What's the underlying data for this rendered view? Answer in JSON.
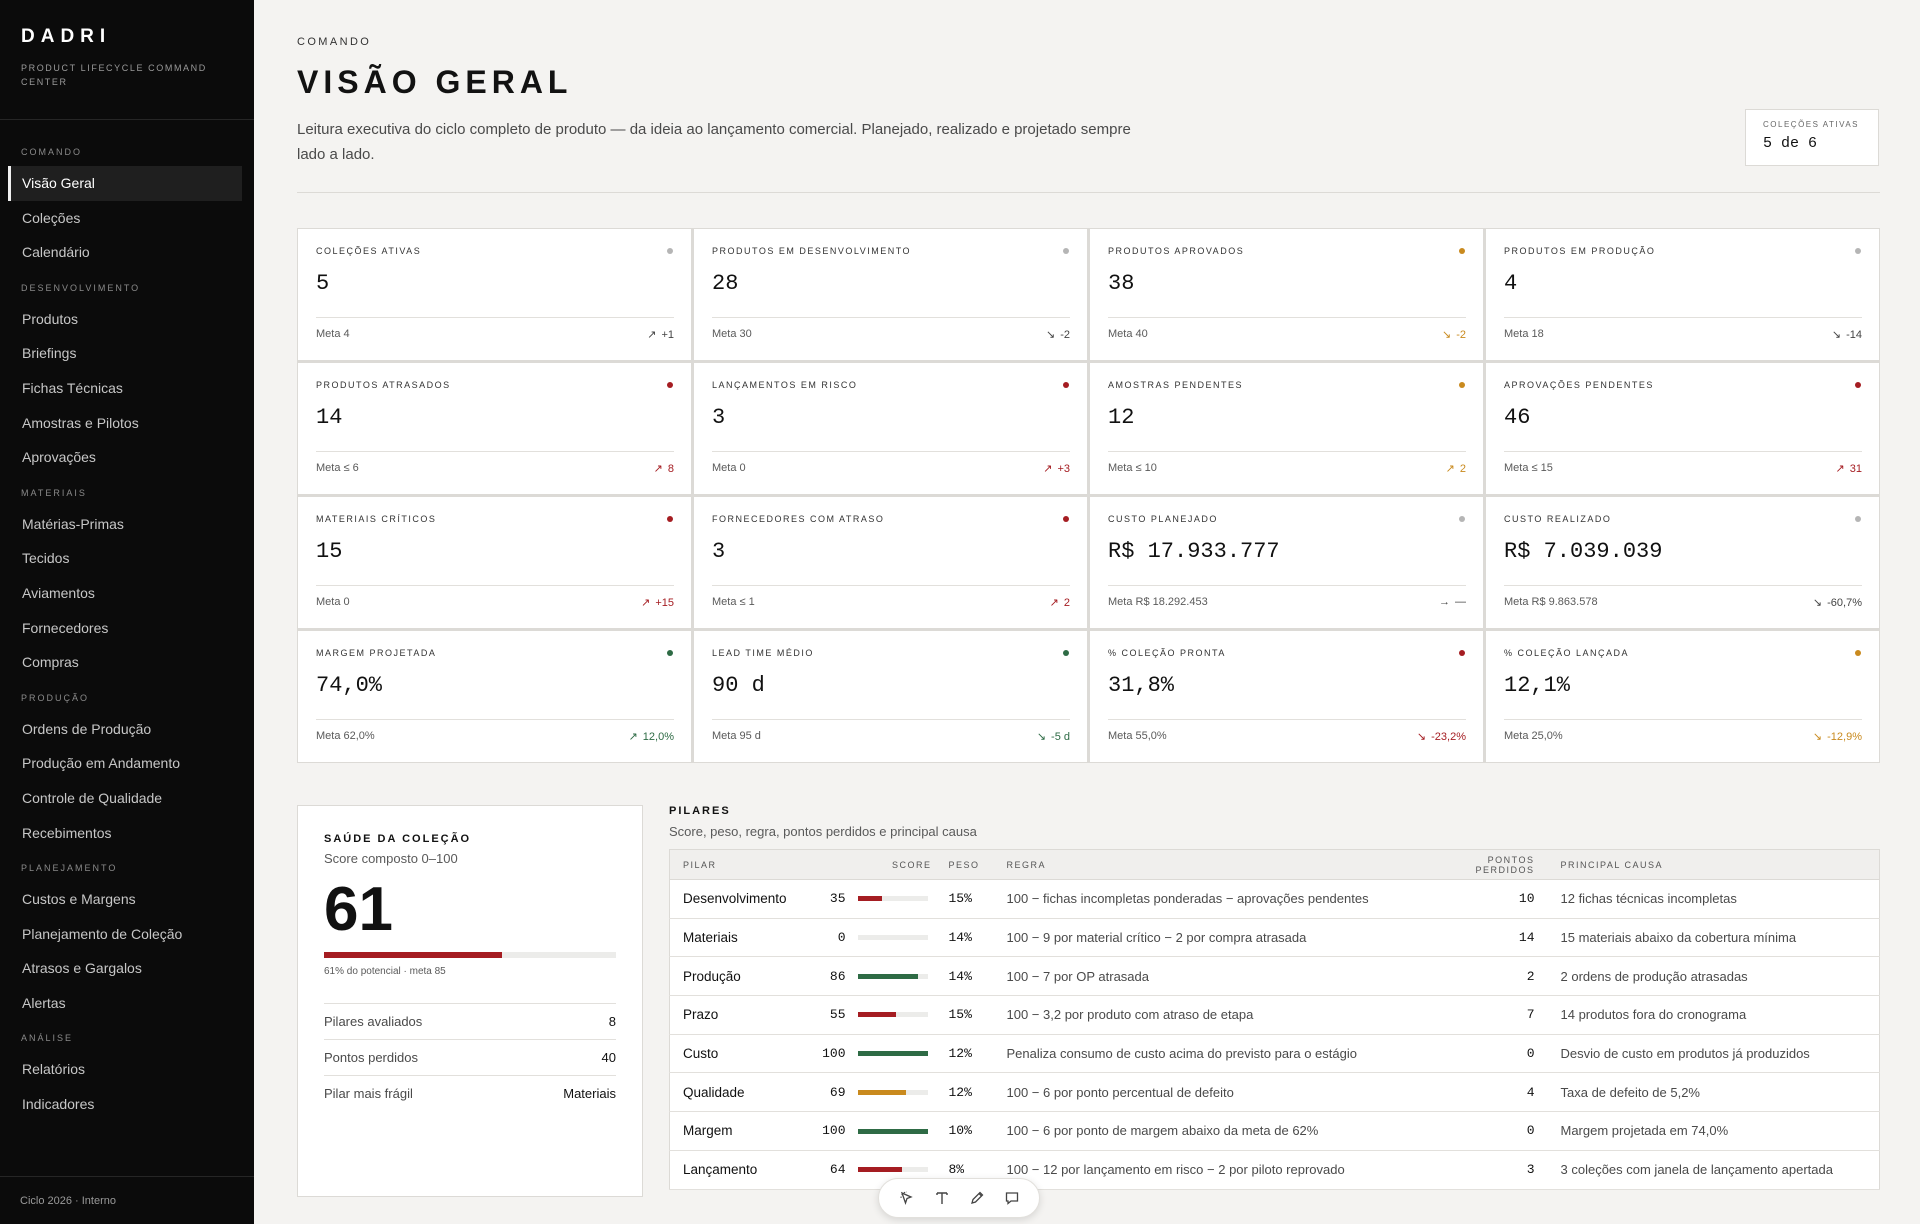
{
  "brand": {
    "name": "DADRI",
    "subtitle": "PRODUCT LIFECYCLE COMMAND CENTER"
  },
  "sidebar": {
    "sections": [
      {
        "title": "COMANDO",
        "items": [
          "Visão Geral",
          "Coleções",
          "Calendário"
        ]
      },
      {
        "title": "DESENVOLVIMENTO",
        "items": [
          "Produtos",
          "Briefings",
          "Fichas Técnicas",
          "Amostras e Pilotos",
          "Aprovações"
        ]
      },
      {
        "title": "MATERIAIS",
        "items": [
          "Matérias-Primas",
          "Tecidos",
          "Aviamentos",
          "Fornecedores",
          "Compras"
        ]
      },
      {
        "title": "PRODUÇÃO",
        "items": [
          "Ordens de Produção",
          "Produção em Andamento",
          "Controle de Qualidade",
          "Recebimentos"
        ]
      },
      {
        "title": "PLANEJAMENTO",
        "items": [
          "Custos e Margens",
          "Planejamento de Coleção",
          "Atrasos e Gargalos",
          "Alertas"
        ]
      },
      {
        "title": "ANÁLISE",
        "items": [
          "Relatórios",
          "Indicadores"
        ]
      }
    ],
    "active": "Visão Geral",
    "footer": "Ciclo 2026 · Interno"
  },
  "header": {
    "eyebrow": "COMANDO",
    "title": "VISÃO GERAL",
    "description": "Leitura executiva do ciclo completo de produto — da ideia ao lançamento comercial. Planejado, realizado e projetado sempre lado a lado.",
    "active_box": {
      "label": "COLEÇÕES ATIVAS",
      "value": "5 de 6"
    }
  },
  "colors": {
    "red": "#a51d22",
    "amber": "#c98a1e",
    "green": "#2e6b45",
    "gray": "#b5b5b5"
  },
  "kpis": [
    {
      "label": "COLEÇÕES ATIVAS",
      "value": "5",
      "meta": "Meta 4",
      "trend": "↗",
      "delta": "+1",
      "status": "gray",
      "tone": "neutral"
    },
    {
      "label": "PRODUTOS EM DESENVOLVIMENTO",
      "value": "28",
      "meta": "Meta 30",
      "trend": "↘",
      "delta": "-2",
      "status": "gray",
      "tone": "neutral"
    },
    {
      "label": "PRODUTOS APROVADOS",
      "value": "38",
      "meta": "Meta 40",
      "trend": "↘",
      "delta": "-2",
      "status": "amber",
      "tone": "amber"
    },
    {
      "label": "PRODUTOS EM PRODUÇÃO",
      "value": "4",
      "meta": "Meta 18",
      "trend": "↘",
      "delta": "-14",
      "status": "gray",
      "tone": "neutral"
    },
    {
      "label": "PRODUTOS ATRASADOS",
      "value": "14",
      "meta": "Meta ≤ 6",
      "trend": "↗",
      "delta": "8",
      "status": "red",
      "tone": "red"
    },
    {
      "label": "LANÇAMENTOS EM RISCO",
      "value": "3",
      "meta": "Meta 0",
      "trend": "↗",
      "delta": "+3",
      "status": "red",
      "tone": "red"
    },
    {
      "label": "AMOSTRAS PENDENTES",
      "value": "12",
      "meta": "Meta ≤ 10",
      "trend": "↗",
      "delta": "2",
      "status": "amber",
      "tone": "amber"
    },
    {
      "label": "APROVAÇÕES PENDENTES",
      "value": "46",
      "meta": "Meta ≤ 15",
      "trend": "↗",
      "delta": "31",
      "status": "red",
      "tone": "red"
    },
    {
      "label": "MATERIAIS CRÍTICOS",
      "value": "15",
      "meta": "Meta 0",
      "trend": "↗",
      "delta": "+15",
      "status": "red",
      "tone": "red"
    },
    {
      "label": "FORNECEDORES COM ATRASO",
      "value": "3",
      "meta": "Meta ≤ 1",
      "trend": "↗",
      "delta": "2",
      "status": "red",
      "tone": "red"
    },
    {
      "label": "CUSTO PLANEJADO",
      "value": "R$ 17.933.777",
      "meta": "Meta R$ 18.292.453",
      "trend": "→",
      "delta": "—",
      "status": "gray",
      "tone": "neutral"
    },
    {
      "label": "CUSTO REALIZADO",
      "value": "R$ 7.039.039",
      "meta": "Meta R$ 9.863.578",
      "trend": "↘",
      "delta": "-60,7%",
      "status": "gray",
      "tone": "neutral"
    },
    {
      "label": "MARGEM PROJETADA",
      "value": "74,0%",
      "meta": "Meta 62,0%",
      "trend": "↗",
      "delta": "12,0%",
      "status": "green",
      "tone": "green"
    },
    {
      "label": "LEAD TIME MÉDIO",
      "value": "90 d",
      "meta": "Meta 95 d",
      "trend": "↘",
      "delta": "-5 d",
      "status": "green",
      "tone": "green"
    },
    {
      "label": "% COLEÇÃO PRONTA",
      "value": "31,8%",
      "meta": "Meta 55,0%",
      "trend": "↘",
      "delta": "-23,2%",
      "status": "red",
      "tone": "red"
    },
    {
      "label": "% COLEÇÃO LANÇADA",
      "value": "12,1%",
      "meta": "Meta 25,0%",
      "trend": "↘",
      "delta": "-12,9%",
      "status": "amber",
      "tone": "amber"
    }
  ],
  "health": {
    "title": "SAÚDE DA COLEÇÃO",
    "subtitle": "Score composto 0–100",
    "score": "61",
    "score_fraction": 0.61,
    "note": "61% do potencial · meta 85",
    "rows": [
      {
        "label": "Pilares avaliados",
        "value": "8"
      },
      {
        "label": "Pontos perdidos",
        "value": "40"
      },
      {
        "label": "Pilar mais frágil",
        "value": "Materiais"
      }
    ]
  },
  "pillars": {
    "title": "PILARES",
    "subtitle": "Score, peso, regra, pontos perdidos e principal causa",
    "columns": [
      "PILAR",
      "SCORE",
      "PESO",
      "REGRA",
      "PONTOS PERDIDOS",
      "PRINCIPAL CAUSA"
    ],
    "rows": [
      {
        "pilar": "Desenvolvimento",
        "score": "35",
        "fill": 0.35,
        "tone": "red",
        "peso": "15%",
        "regra": "100 − fichas incompletas ponderadas − aprovações pendentes",
        "perdidos": "10",
        "causa": "12 fichas técnicas incompletas"
      },
      {
        "pilar": "Materiais",
        "score": "0",
        "fill": 0,
        "tone": "red",
        "peso": "14%",
        "regra": "100 − 9 por material crítico − 2 por compra atrasada",
        "perdidos": "14",
        "causa": "15 materiais abaixo da cobertura mínima"
      },
      {
        "pilar": "Produção",
        "score": "86",
        "fill": 0.86,
        "tone": "green",
        "peso": "14%",
        "regra": "100 − 7 por OP atrasada",
        "perdidos": "2",
        "causa": "2 ordens de produção atrasadas"
      },
      {
        "pilar": "Prazo",
        "score": "55",
        "fill": 0.55,
        "tone": "red",
        "peso": "15%",
        "regra": "100 − 3,2 por produto com atraso de etapa",
        "perdidos": "7",
        "causa": "14 produtos fora do cronograma"
      },
      {
        "pilar": "Custo",
        "score": "100",
        "fill": 1,
        "tone": "green",
        "peso": "12%",
        "regra": "Penaliza consumo de custo acima do previsto para o estágio",
        "perdidos": "0",
        "causa": "Desvio de custo em produtos já produzidos"
      },
      {
        "pilar": "Qualidade",
        "score": "69",
        "fill": 0.69,
        "tone": "amber",
        "peso": "12%",
        "regra": "100 − 6 por ponto percentual de defeito",
        "perdidos": "4",
        "causa": "Taxa de defeito de 5,2%"
      },
      {
        "pilar": "Margem",
        "score": "100",
        "fill": 1,
        "tone": "green",
        "peso": "10%",
        "regra": "100 − 6 por ponto de margem abaixo da meta de 62%",
        "perdidos": "0",
        "causa": "Margem projetada em 74,0%"
      },
      {
        "pilar": "Lançamento",
        "score": "64",
        "fill": 0.64,
        "tone": "red",
        "peso": "8%",
        "regra": "100 − 12 por lançamento em risco − 2 por piloto reprovado",
        "perdidos": "3",
        "causa": "3 coleções com janela de lançamento apertada"
      }
    ]
  },
  "toolbar": {
    "icons": [
      "select-icon",
      "text-icon",
      "pen-icon",
      "comment-icon"
    ]
  }
}
